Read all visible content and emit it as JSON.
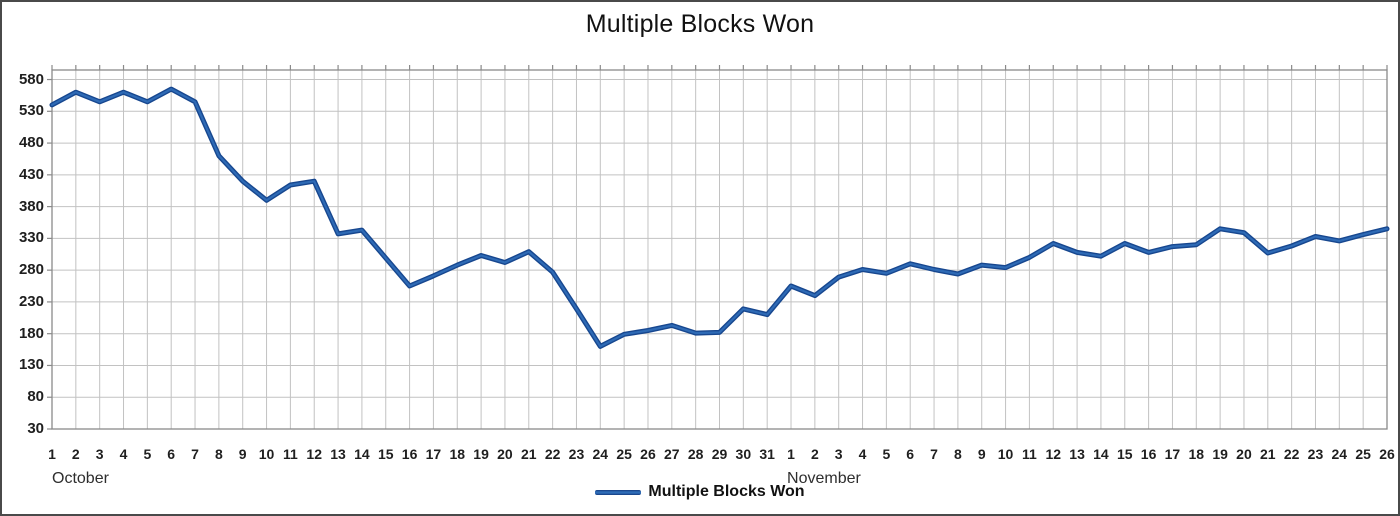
{
  "title": "Multiple Blocks Won",
  "legend": {
    "label": "Multiple Blocks Won"
  },
  "chart_data": {
    "type": "line",
    "title": "Multiple Blocks Won",
    "x_labels": [
      "1",
      "2",
      "3",
      "4",
      "5",
      "6",
      "7",
      "8",
      "9",
      "10",
      "11",
      "12",
      "13",
      "14",
      "15",
      "16",
      "17",
      "18",
      "19",
      "20",
      "21",
      "22",
      "23",
      "24",
      "25",
      "26",
      "27",
      "28",
      "29",
      "30",
      "31",
      "1",
      "2",
      "3",
      "4",
      "5",
      "6",
      "7",
      "8",
      "9",
      "10",
      "11",
      "12",
      "13",
      "14",
      "15",
      "16",
      "17",
      "18",
      "19",
      "20",
      "21",
      "22",
      "23",
      "24",
      "25",
      "26"
    ],
    "x_groups": [
      {
        "label": "October",
        "count": 31
      },
      {
        "label": "November",
        "count": 26
      }
    ],
    "y_ticks": [
      580,
      530,
      480,
      430,
      380,
      330,
      280,
      230,
      180,
      130,
      80,
      30
    ],
    "ylim": [
      30,
      595
    ],
    "grid": true,
    "legend_position": "bottom",
    "series": [
      {
        "name": "Multiple Blocks Won",
        "color": "#17478f",
        "color_highlight": "#2e6ab5",
        "values": [
          540,
          560,
          545,
          560,
          545,
          565,
          545,
          460,
          420,
          390,
          414,
          420,
          337,
          343,
          299,
          255,
          271,
          288,
          303,
          292,
          309,
          277,
          219,
          160,
          179,
          185,
          193,
          181,
          182,
          219,
          210,
          255,
          240,
          269,
          281,
          275,
          290,
          281,
          274,
          288,
          284,
          300,
          322,
          308,
          302,
          322,
          308,
          317,
          320,
          345,
          339,
          307,
          318,
          333,
          326,
          336,
          345
        ]
      }
    ]
  },
  "colors": {
    "gridline": "#c2c2c2",
    "plot_border": "#8a8a8a",
    "background": "#ffffff"
  }
}
